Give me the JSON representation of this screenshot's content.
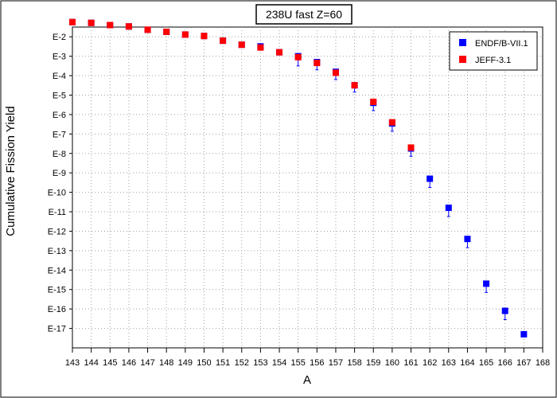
{
  "chart_data": {
    "type": "scatter",
    "title": "238U fast Z=60",
    "xlabel": "A",
    "ylabel": "Cumulative Fission Yield",
    "xlim": [
      143,
      168
    ],
    "x_ticks": [
      "143",
      "144",
      "145",
      "146",
      "147",
      "148",
      "149",
      "150",
      "151",
      "152",
      "153",
      "154",
      "155",
      "156",
      "157",
      "158",
      "159",
      "160",
      "161",
      "162",
      "163",
      "164",
      "165",
      "166",
      "167",
      "168"
    ],
    "y_scale": "log",
    "ylim_exponent": [
      -1.5,
      -18
    ],
    "y_ticks": [
      "E-2",
      "E-3",
      "E-4",
      "E-5",
      "E-6",
      "E-7",
      "E-8",
      "E-9",
      "E-10",
      "E-11",
      "E-12",
      "E-13",
      "E-14",
      "E-15",
      "E-16",
      "E-17"
    ],
    "grid": true,
    "legend_position": "top-right",
    "series": [
      {
        "name": "ENDF/B-VII.1",
        "color": "#0000ff",
        "marker": "square",
        "points": [
          {
            "x": 143,
            "y": 0.057,
            "err_low": 0.0
          },
          {
            "x": 144,
            "y": 0.052,
            "err_low": 0.0
          },
          {
            "x": 145,
            "y": 0.04,
            "err_low": 0.0
          },
          {
            "x": 146,
            "y": 0.034,
            "err_low": 0.0
          },
          {
            "x": 147,
            "y": 0.023,
            "err_low": 0.0
          },
          {
            "x": 148,
            "y": 0.018,
            "err_low": 0.0
          },
          {
            "x": 149,
            "y": 0.013,
            "err_low": 0.0
          },
          {
            "x": 150,
            "y": 0.011,
            "err_low": 0.0
          },
          {
            "x": 151,
            "y": 0.0063,
            "err_low": 0.0
          },
          {
            "x": 152,
            "y": 0.0039,
            "err_low": 0.0
          },
          {
            "x": 153,
            "y": 0.0032,
            "err_low": 0.0
          },
          {
            "x": 154,
            "y": 0.0016,
            "err_low": 0.0
          },
          {
            "x": 155,
            "y": 0.001,
            "err_low": 0.5
          },
          {
            "x": 156,
            "y": 0.0005,
            "err_low": 0.4
          },
          {
            "x": 157,
            "y": 0.000158,
            "err_low": 0.4
          },
          {
            "x": 158,
            "y": 3.2e-05,
            "err_low": 0.35
          },
          {
            "x": 159,
            "y": 4e-06,
            "err_low": 0.4
          },
          {
            "x": 160,
            "y": 3.5e-07,
            "err_low": 0.4
          },
          {
            "x": 161,
            "y": 1.8e-08,
            "err_low": 0.4
          },
          {
            "x": 162,
            "y": 5e-10,
            "err_low": 0.45
          },
          {
            "x": 163,
            "y": 1.6e-11,
            "err_low": 0.45
          },
          {
            "x": 164,
            "y": 4e-13,
            "err_low": 0.45
          },
          {
            "x": 165,
            "y": 2e-15,
            "err_low": 0.45
          },
          {
            "x": 166,
            "y": 8e-17,
            "err_low": 0.45
          },
          {
            "x": 167,
            "y": 5e-18,
            "err_low": 0.0
          }
        ]
      },
      {
        "name": "JEFF-3.1",
        "color": "#ff0000",
        "marker": "square",
        "points": [
          {
            "x": 143,
            "y": 0.057
          },
          {
            "x": 144,
            "y": 0.052
          },
          {
            "x": 145,
            "y": 0.04
          },
          {
            "x": 146,
            "y": 0.034
          },
          {
            "x": 147,
            "y": 0.023
          },
          {
            "x": 148,
            "y": 0.018
          },
          {
            "x": 149,
            "y": 0.013
          },
          {
            "x": 150,
            "y": 0.011
          },
          {
            "x": 151,
            "y": 0.0063
          },
          {
            "x": 152,
            "y": 0.0039
          },
          {
            "x": 153,
            "y": 0.0028
          },
          {
            "x": 154,
            "y": 0.0016
          },
          {
            "x": 155,
            "y": 0.00089
          },
          {
            "x": 156,
            "y": 0.00045
          },
          {
            "x": 157,
            "y": 0.000141
          },
          {
            "x": 158,
            "y": 3.2e-05
          },
          {
            "x": 159,
            "y": 4.5e-06
          },
          {
            "x": 160,
            "y": 4e-07
          },
          {
            "x": 161,
            "y": 2e-08
          }
        ]
      }
    ]
  }
}
